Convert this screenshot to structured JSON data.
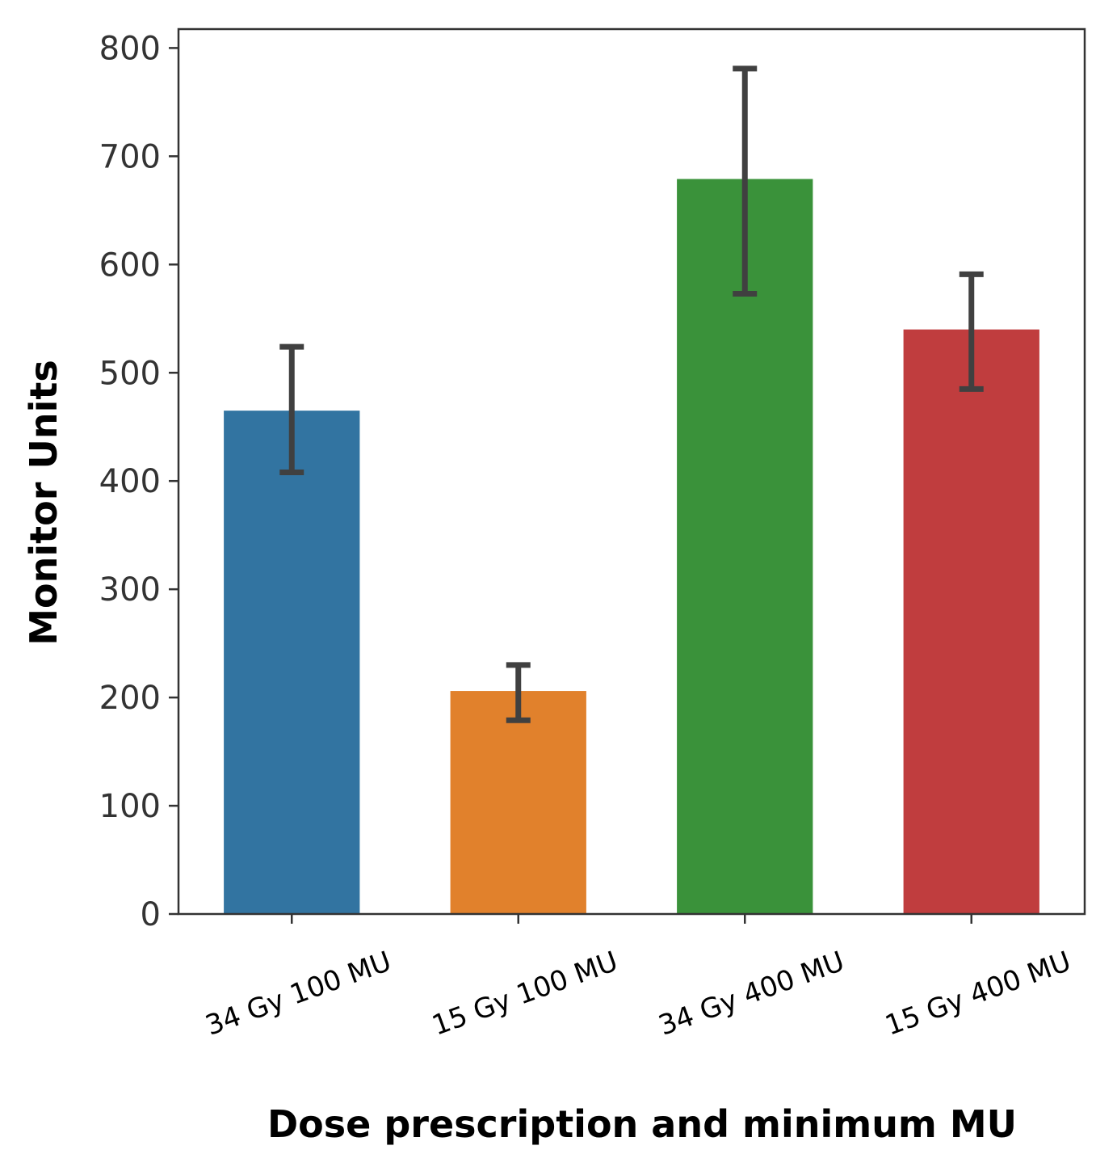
{
  "chart_data": {
    "type": "bar",
    "title": "",
    "xlabel": "Dose prescription and minimum MU",
    "ylabel": "Monitor Units",
    "ylim": [
      0,
      818
    ],
    "yticks": [
      0,
      100,
      200,
      300,
      400,
      500,
      600,
      700,
      800
    ],
    "grid": false,
    "legend": "none",
    "categories": [
      "34 Gy 100 MU",
      "15 Gy 100 MU",
      "34 Gy 400 MU",
      "15 Gy 400 MU"
    ],
    "values": [
      465,
      206,
      679,
      540
    ],
    "error_low": [
      408,
      179,
      573,
      485
    ],
    "error_high": [
      524,
      230,
      781,
      591
    ],
    "colors": [
      "#3274a1",
      "#e1812c",
      "#3a923a",
      "#c03d3e"
    ],
    "error_color": "#404040"
  }
}
